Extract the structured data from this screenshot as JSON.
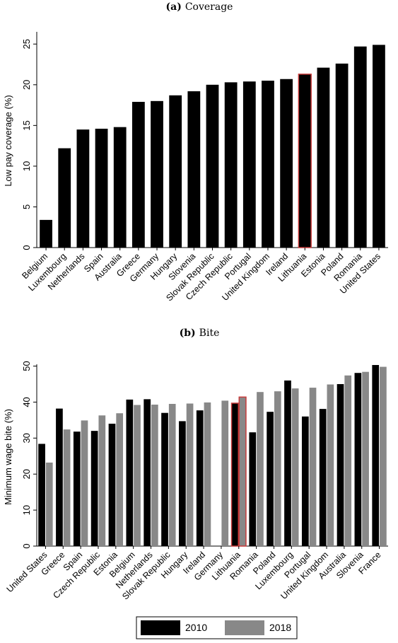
{
  "colors": {
    "s2010": "#000000",
    "s2018": "#888888",
    "highlight": "#c83c3c"
  },
  "chart_data": [
    {
      "type": "bar",
      "panel": "(a)",
      "title": "Coverage",
      "ylabel": "Low pay coverage (%)",
      "ylim": [
        0,
        26.5
      ],
      "yticks": [
        0,
        5,
        10,
        15,
        20,
        25
      ],
      "highlight": "Lithuania",
      "categories": [
        "Belgium",
        "Luxembourg",
        "Netherlands",
        "Spain",
        "Australia",
        "Greece",
        "Germany",
        "Hungary",
        "Slovenia",
        "Slovak Republic",
        "Czech Republic",
        "Portugal",
        "United Kingdom",
        "Ireland",
        "Lithuania",
        "Estonia",
        "Poland",
        "Romania",
        "United States"
      ],
      "series": [
        {
          "values": [
            3.4,
            12.2,
            14.5,
            14.6,
            14.8,
            17.9,
            18.0,
            18.7,
            19.2,
            20.0,
            20.3,
            20.4,
            20.5,
            20.7,
            21.3,
            22.1,
            22.6,
            24.7,
            24.9
          ]
        }
      ]
    },
    {
      "type": "bar",
      "panel": "(b)",
      "title": "Bite",
      "ylabel": "Minimum wage bite (%)",
      "ylim": [
        0,
        50.5
      ],
      "yticks": [
        0,
        10,
        20,
        30,
        40,
        50
      ],
      "highlight": "Lithuania",
      "categories": [
        "United States",
        "Greece",
        "Spain",
        "Czech Republic",
        "Estonia",
        "Belgium",
        "Netherlands",
        "Slovak Republic",
        "Hungary",
        "Ireland",
        "Germany",
        "Lithuania",
        "Romania",
        "Poland",
        "Luxembourg",
        "Portugal",
        "United Kingdom",
        "Australia",
        "Slovenia",
        "France"
      ],
      "series": [
        {
          "name": "2010",
          "values": [
            28.4,
            38.2,
            31.8,
            32.0,
            34.0,
            40.7,
            40.8,
            37.0,
            34.7,
            37.7,
            null,
            39.7,
            31.6,
            37.3,
            46.0,
            36.0,
            38.1,
            45.0,
            48.1,
            50.3
          ]
        },
        {
          "name": "2018",
          "values": [
            23.2,
            32.4,
            34.9,
            36.3,
            36.9,
            39.2,
            39.3,
            39.5,
            39.6,
            39.9,
            40.4,
            41.4,
            42.8,
            43.0,
            43.8,
            44.0,
            44.9,
            47.4,
            48.4,
            49.8
          ]
        }
      ]
    }
  ]
}
